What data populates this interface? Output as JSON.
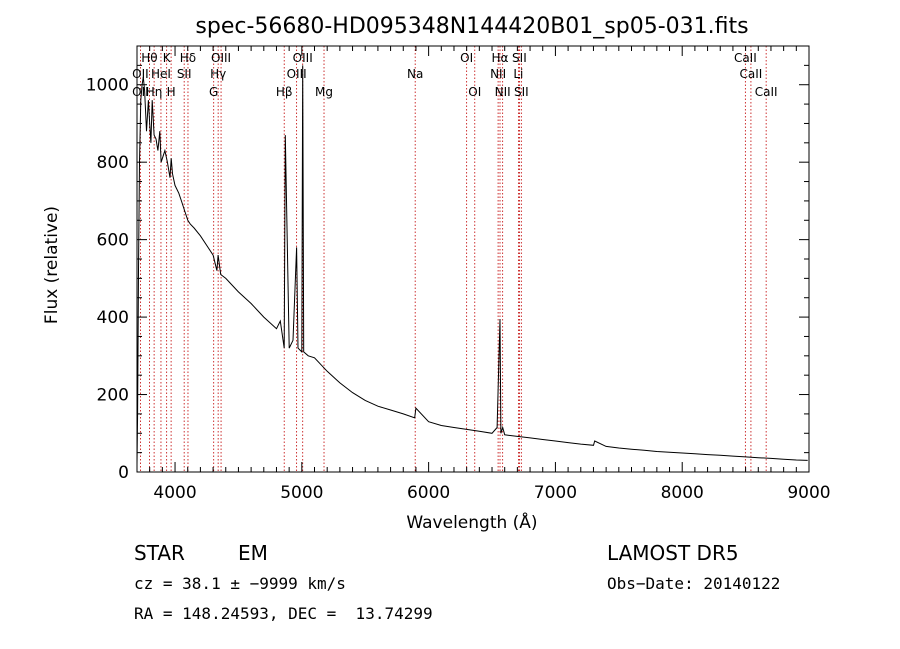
{
  "chart_data": {
    "type": "line",
    "title": "spec-56680-HD095348N144420B01_sp05-031.fits",
    "xlabel": "Wavelength (Å)",
    "ylabel": "Flux (relative)",
    "xlim": [
      3700,
      9000
    ],
    "ylim": [
      0,
      1100
    ],
    "xticks": [
      4000,
      5000,
      6000,
      7000,
      8000,
      9000
    ],
    "yticks": [
      0,
      200,
      400,
      600,
      800,
      1000
    ],
    "grid": false,
    "series": [
      {
        "x": [
          3700,
          3705,
          3712,
          3720,
          3730,
          3740,
          3750,
          3760,
          3775,
          3790,
          3800,
          3810,
          3820,
          3835,
          3850,
          3865,
          3880,
          3890,
          3900,
          3920,
          3940,
          3960,
          3970,
          3980,
          4000,
          4030,
          4050,
          4080,
          4101,
          4120,
          4150,
          4200,
          4250,
          4300,
          4330,
          4340,
          4360,
          4400,
          4500,
          4600,
          4700,
          4800,
          4830,
          4861,
          4870,
          4900,
          4930,
          4959,
          4970,
          5000,
          5007,
          5015,
          5050,
          5100,
          5200,
          5300,
          5400,
          5500,
          5600,
          5700,
          5800,
          5890,
          5900,
          6000,
          6100,
          6200,
          6300,
          6400,
          6500,
          6540,
          6563,
          6570,
          6584,
          6600,
          6700,
          6800,
          6900,
          7000,
          7100,
          7200,
          7300,
          7310,
          7400,
          7500,
          7600,
          7700,
          7800,
          7900,
          8000,
          8100,
          8200,
          8300,
          8400,
          8500,
          8600,
          8700,
          8800,
          8900,
          8990
        ],
        "y": [
          20,
          150,
          520,
          800,
          960,
          1000,
          1020,
          985,
          880,
          960,
          900,
          850,
          960,
          870,
          860,
          830,
          880,
          800,
          810,
          830,
          800,
          760,
          810,
          770,
          740,
          720,
          700,
          670,
          650,
          640,
          630,
          610,
          585,
          560,
          520,
          560,
          510,
          500,
          465,
          435,
          400,
          370,
          390,
          320,
          870,
          320,
          340,
          580,
          320,
          310,
          1050,
          310,
          300,
          295,
          260,
          230,
          205,
          185,
          170,
          160,
          150,
          140,
          165,
          130,
          120,
          115,
          110,
          105,
          100,
          115,
          395,
          100,
          115,
          96,
          92,
          88,
          84,
          80,
          76,
          72,
          69,
          80,
          66,
          62,
          59,
          56,
          53,
          51,
          49,
          47,
          45,
          43,
          41,
          39,
          37,
          35,
          33,
          31,
          30
        ]
      }
    ],
    "emission_lines": [
      {
        "label": "Hθ",
        "x": 3798,
        "row": 1
      },
      {
        "label": "OII",
        "x": 3727,
        "row": 2
      },
      {
        "label": "OII",
        "x": 3727,
        "row": 3
      },
      {
        "label": "Hη",
        "x": 3835,
        "row": 3
      },
      {
        "label": "K",
        "x": 3934,
        "row": 1
      },
      {
        "label": "HeI",
        "x": 3889,
        "row": 2
      },
      {
        "label": "H",
        "x": 3969,
        "row": 3
      },
      {
        "label": "Hδ",
        "x": 4102,
        "row": 1
      },
      {
        "label": "SII",
        "x": 4072,
        "row": 2
      },
      {
        "label": "OIII",
        "x": 4363,
        "row": 1
      },
      {
        "label": "Hγ",
        "x": 4340,
        "row": 2
      },
      {
        "label": "G",
        "x": 4305,
        "row": 3
      },
      {
        "label": "Hβ",
        "x": 4861,
        "row": 3
      },
      {
        "label": "OIII",
        "x": 5007,
        "row": 1
      },
      {
        "label": "OIII",
        "x": 4959,
        "row": 2
      },
      {
        "label": "Mg",
        "x": 5175,
        "row": 3
      },
      {
        "label": "Na",
        "x": 5894,
        "row": 2
      },
      {
        "label": "OI",
        "x": 6300,
        "row": 1
      },
      {
        "label": "OI",
        "x": 6364,
        "row": 3
      },
      {
        "label": "Hα",
        "x": 6563,
        "row": 1
      },
      {
        "label": "SII",
        "x": 6716,
        "row": 1
      },
      {
        "label": "NII",
        "x": 6548,
        "row": 2
      },
      {
        "label": "Li",
        "x": 6708,
        "row": 2
      },
      {
        "label": "NII",
        "x": 6584,
        "row": 3
      },
      {
        "label": "SII",
        "x": 6731,
        "row": 3
      },
      {
        "label": "CaII",
        "x": 8498,
        "row": 1
      },
      {
        "label": "CaII",
        "x": 8542,
        "row": 2
      },
      {
        "label": "CaII",
        "x": 8662,
        "row": 3
      }
    ]
  },
  "footer": {
    "class_label": "STAR",
    "subclass_label": "EM",
    "survey": "LAMOST DR5",
    "cz": "cz = 38.1 ± −9999 km/s",
    "obs_date": "Obs−Date: 20140122",
    "coords": "RA = 148.24593, DEC =  13.74299"
  },
  "colors": {
    "spectrum": "#000000",
    "line_markers": "#c00000"
  }
}
